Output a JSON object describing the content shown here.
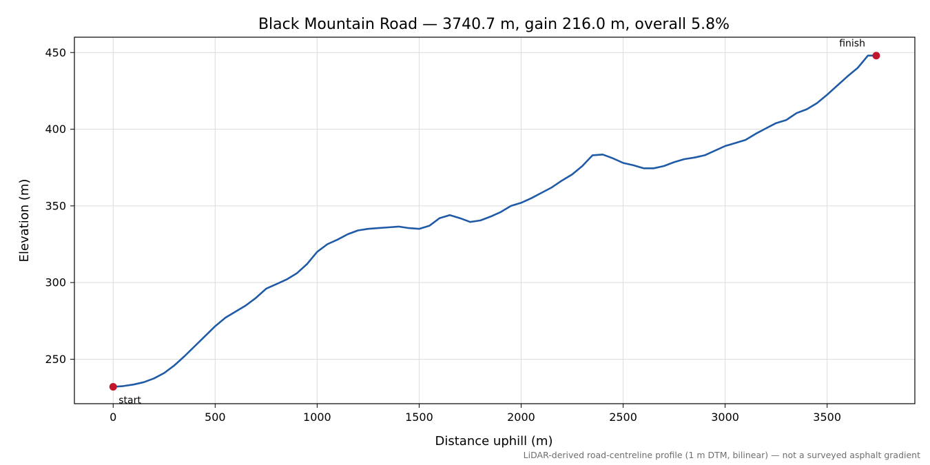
{
  "chart_data": {
    "type": "line",
    "title": "Black Mountain Road — 3740.7 m, gain 216.0 m, overall 5.8%",
    "xlabel": "Distance uphill (m)",
    "ylabel": "Elevation (m)",
    "xlim": [
      -190,
      3930
    ],
    "ylim": [
      221,
      460
    ],
    "xticks": [
      0,
      500,
      1000,
      1500,
      2000,
      2500,
      3000,
      3500
    ],
    "yticks": [
      250,
      300,
      350,
      400,
      450
    ],
    "grid": true,
    "line_color": "#1f5aa6",
    "marker_color": "#c0172d",
    "series": [
      {
        "x": [
          0,
          50,
          100,
          150,
          200,
          250,
          300,
          350,
          400,
          450,
          500,
          550,
          600,
          650,
          700,
          750,
          800,
          850,
          900,
          950,
          1000,
          1050,
          1100,
          1150,
          1200,
          1250,
          1300,
          1350,
          1400,
          1450,
          1500,
          1550,
          1600,
          1650,
          1700,
          1750,
          1800,
          1850,
          1900,
          1950,
          2000,
          2050,
          2100,
          2150,
          2200,
          2250,
          2300,
          2350,
          2400,
          2450,
          2500,
          2550,
          2600,
          2650,
          2700,
          2750,
          2800,
          2850,
          2900,
          2950,
          3000,
          3050,
          3100,
          3150,
          3200,
          3250,
          3300,
          3350,
          3400,
          3450,
          3500,
          3550,
          3600,
          3650,
          3700,
          3740.7
        ],
        "y": [
          232,
          232.5,
          233.5,
          235,
          237.5,
          241,
          246,
          252,
          258.5,
          265,
          271.5,
          277,
          281,
          285,
          290,
          296,
          299,
          302,
          306,
          312,
          320,
          325,
          328,
          331.5,
          334,
          335,
          335.5,
          336,
          336.5,
          335.5,
          335,
          337,
          342,
          344,
          342,
          339.5,
          340.5,
          343,
          346,
          350,
          352,
          355,
          358.5,
          362,
          366.5,
          370.5,
          376,
          383,
          383.5,
          381,
          378,
          376.5,
          374.5,
          374.5,
          376,
          378.5,
          380.5,
          381.5,
          383,
          386,
          389,
          391,
          393,
          397,
          400.5,
          404,
          406,
          410.5,
          413,
          417,
          422.5,
          428.5,
          434.5,
          440,
          448,
          448
        ]
      }
    ],
    "annotations": [
      {
        "text": "start",
        "x": 0,
        "y": 232
      },
      {
        "text": "finish",
        "x": 3740.7,
        "y": 448
      }
    ],
    "footnote": "LiDAR-derived road-centreline profile (1 m DTM, bilinear) — not a surveyed asphalt gradient"
  }
}
